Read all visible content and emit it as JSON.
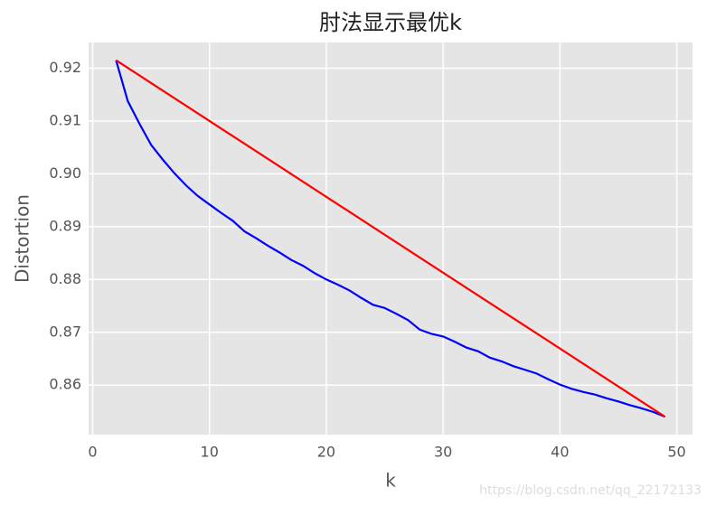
{
  "chart_data": {
    "type": "line",
    "title": "肘法显示最优k",
    "xlabel": "k",
    "ylabel": "Distortion",
    "watermark": "https://blog.csdn.net/qq_22172133",
    "series": [
      {
        "color": "#0000ff",
        "x": [
          2,
          3,
          4,
          5,
          6,
          7,
          8,
          9,
          10,
          11,
          12,
          13,
          14,
          15,
          16,
          17,
          18,
          19,
          20,
          21,
          22,
          23,
          24,
          25,
          26,
          27,
          28,
          29,
          30,
          31,
          32,
          33,
          34,
          35,
          36,
          37,
          38,
          39,
          40,
          41,
          42,
          43,
          44,
          45,
          46,
          47,
          48,
          49
        ],
        "values": [
          0.9215,
          0.9138,
          0.9095,
          0.9055,
          0.9027,
          0.9001,
          0.8978,
          0.8958,
          0.8942,
          0.8926,
          0.8911,
          0.8891,
          0.8878,
          0.8864,
          0.8851,
          0.8837,
          0.8826,
          0.8812,
          0.88,
          0.879,
          0.8779,
          0.8765,
          0.8752,
          0.8746,
          0.8735,
          0.8723,
          0.8705,
          0.8697,
          0.8692,
          0.8682,
          0.8671,
          0.8664,
          0.8652,
          0.8645,
          0.8636,
          0.8629,
          0.8622,
          0.8611,
          0.8601,
          0.8593,
          0.8587,
          0.8582,
          0.8575,
          0.8569,
          0.8562,
          0.8556,
          0.8549,
          0.854
        ]
      },
      {
        "color": "#ff0000",
        "x": [
          2,
          49
        ],
        "values": [
          0.9215,
          0.854
        ]
      }
    ],
    "xlim": [
      -0.35,
      51.35
    ],
    "xticks": [
      0,
      10,
      20,
      30,
      40,
      50
    ],
    "ylim": [
      0.850625,
      0.924875
    ],
    "yticks": [
      0.86,
      0.87,
      0.88,
      0.89,
      {
        "value": 0.9,
        "label": "0.90"
      },
      0.91,
      0.92
    ],
    "grid": true
  }
}
